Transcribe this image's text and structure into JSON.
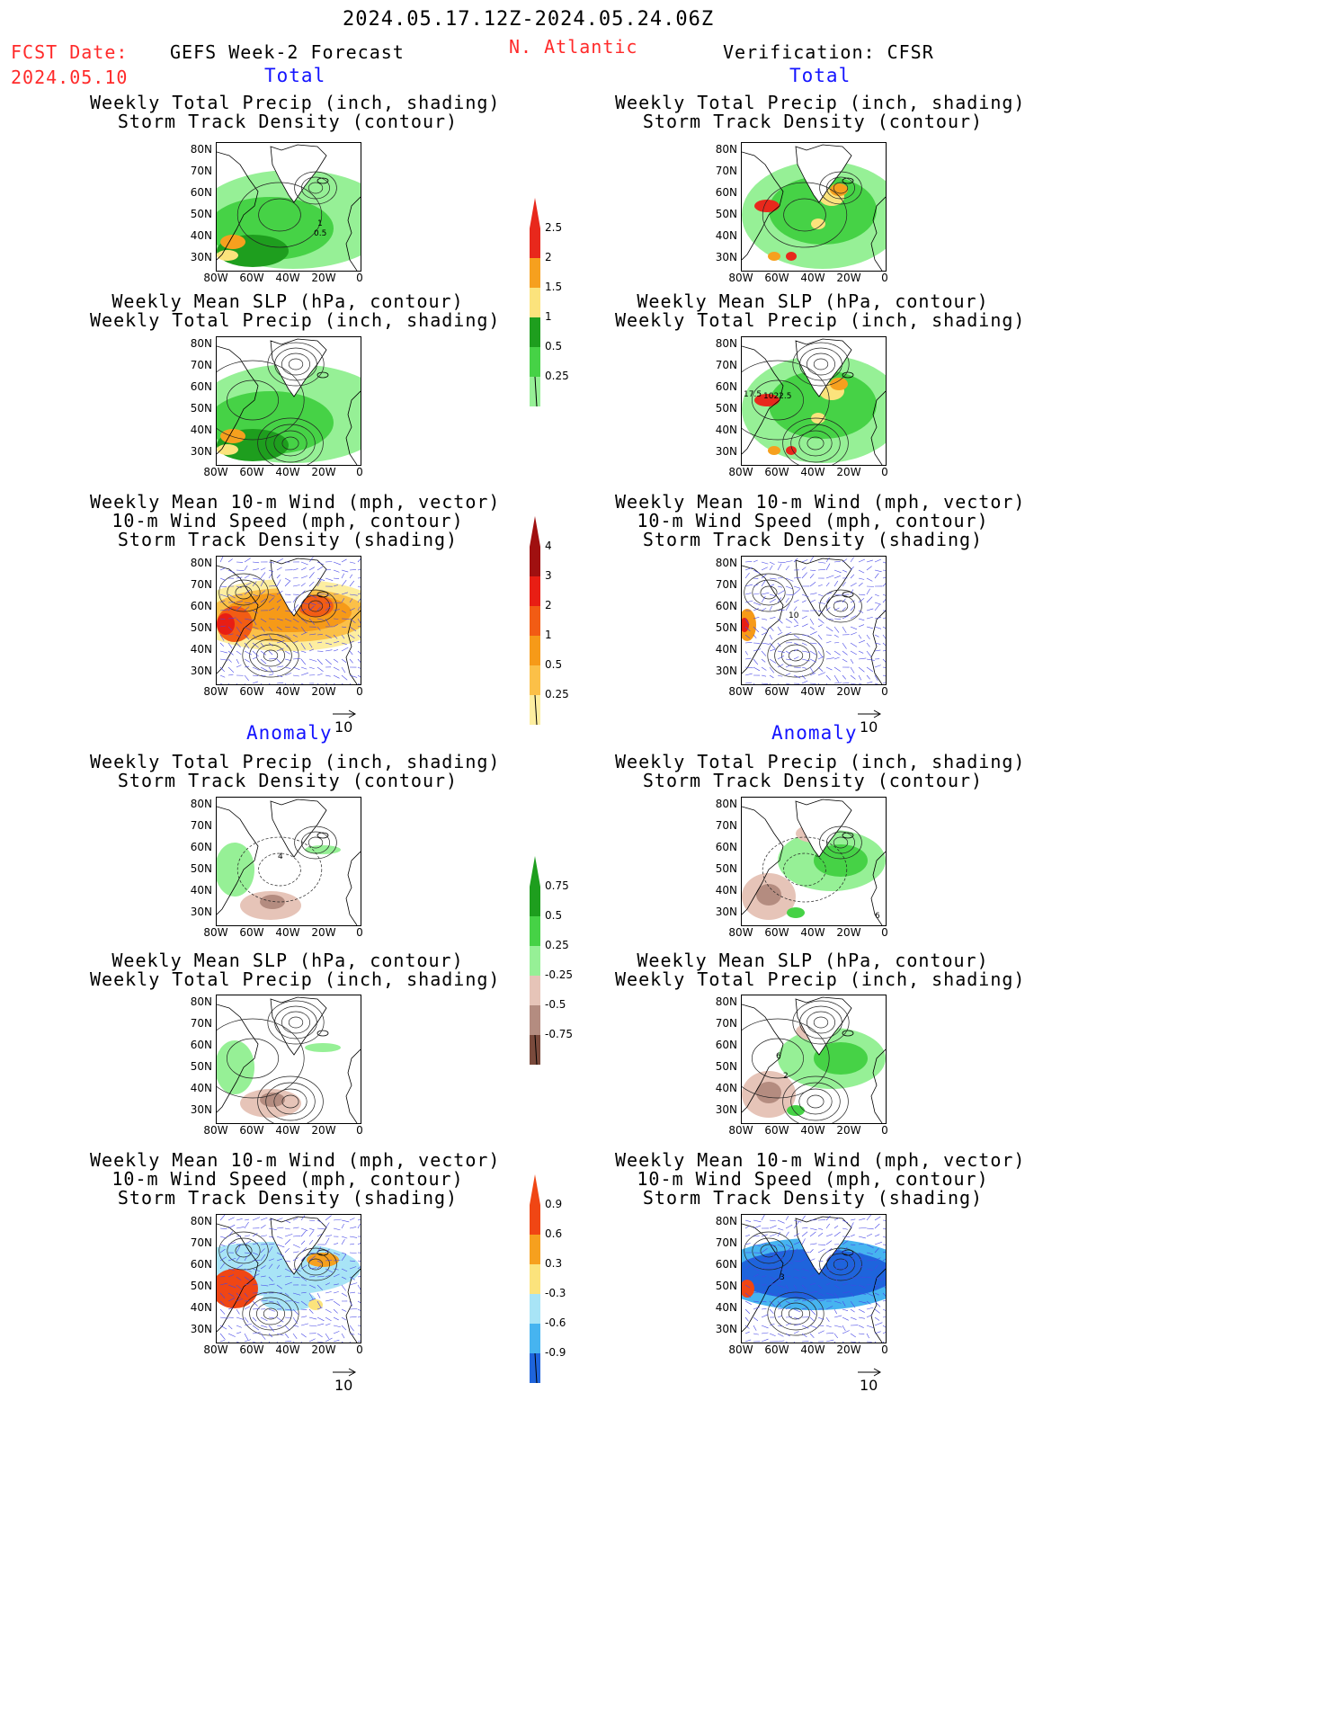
{
  "header": {
    "date_range": "2024.05.17.12Z-2024.05.24.06Z",
    "fcst_label": "FCST Date:",
    "fcst_date": "2024.05.10",
    "model": "GEFS Week-2 Forecast",
    "region": "N. Atlantic",
    "verification": "Verification: CFSR"
  },
  "sections": {
    "total": "Total",
    "anomaly": "Anomaly"
  },
  "panel_titles": {
    "precip_track": [
      "Weekly Total Precip (inch, shading)",
      "Storm Track Density (contour)"
    ],
    "slp_precip": [
      "Weekly Mean SLP (hPa, contour)",
      "Weekly Total Precip (inch, shading)"
    ],
    "wind_track": [
      "Weekly Mean 10-m Wind (mph, vector)",
      "10-m Wind Speed (mph, contour)",
      "Storm Track Density (shading)"
    ]
  },
  "axes": {
    "lat_labels": [
      "80N",
      "70N",
      "60N",
      "50N",
      "40N",
      "30N"
    ],
    "lon_labels": [
      "80W",
      "60W",
      "40W",
      "20W",
      "0"
    ]
  },
  "vector_ref": "10",
  "colorbars": {
    "precip_total": {
      "labels": [
        "2.5",
        "2",
        "1.5",
        "1",
        "0.5",
        "0.25"
      ],
      "colors": [
        "#e8281c",
        "#f6a01e",
        "#fbe37c",
        "#1e9e1e",
        "#46d246",
        "#96f096"
      ]
    },
    "track_total": {
      "labels": [
        "4",
        "3",
        "2",
        "1",
        "0.5",
        "0.25"
      ],
      "colors": [
        "#a01010",
        "#e81e14",
        "#f25c14",
        "#f69a18",
        "#fbc048",
        "#fdeea0"
      ]
    },
    "precip_anom": {
      "labels": [
        "0.75",
        "0.5",
        "0.25",
        "-0.25",
        "-0.5",
        "-0.75"
      ],
      "colors": [
        "#1e9e1e",
        "#46d246",
        "#96f096",
        "#e6c4b8",
        "#b48c80",
        "#7a4a3c"
      ]
    },
    "track_anom": {
      "labels": [
        "0.9",
        "0.6",
        "0.3",
        "-0.3",
        "-0.6",
        "-0.9"
      ],
      "colors": [
        "#f04614",
        "#f6a01e",
        "#fbe37c",
        "#a8e4f6",
        "#46b4f0",
        "#1e64dc"
      ]
    }
  },
  "contour_labels": {
    "p1_a": "1",
    "p1_b": "0.5",
    "p4_a": "17.5",
    "p4_b": "1022.5",
    "p6_a": "10",
    "p7_a": "4",
    "p8_a": "6",
    "p10_a": "6",
    "p10_b": "2",
    "p12_a": "3"
  }
}
